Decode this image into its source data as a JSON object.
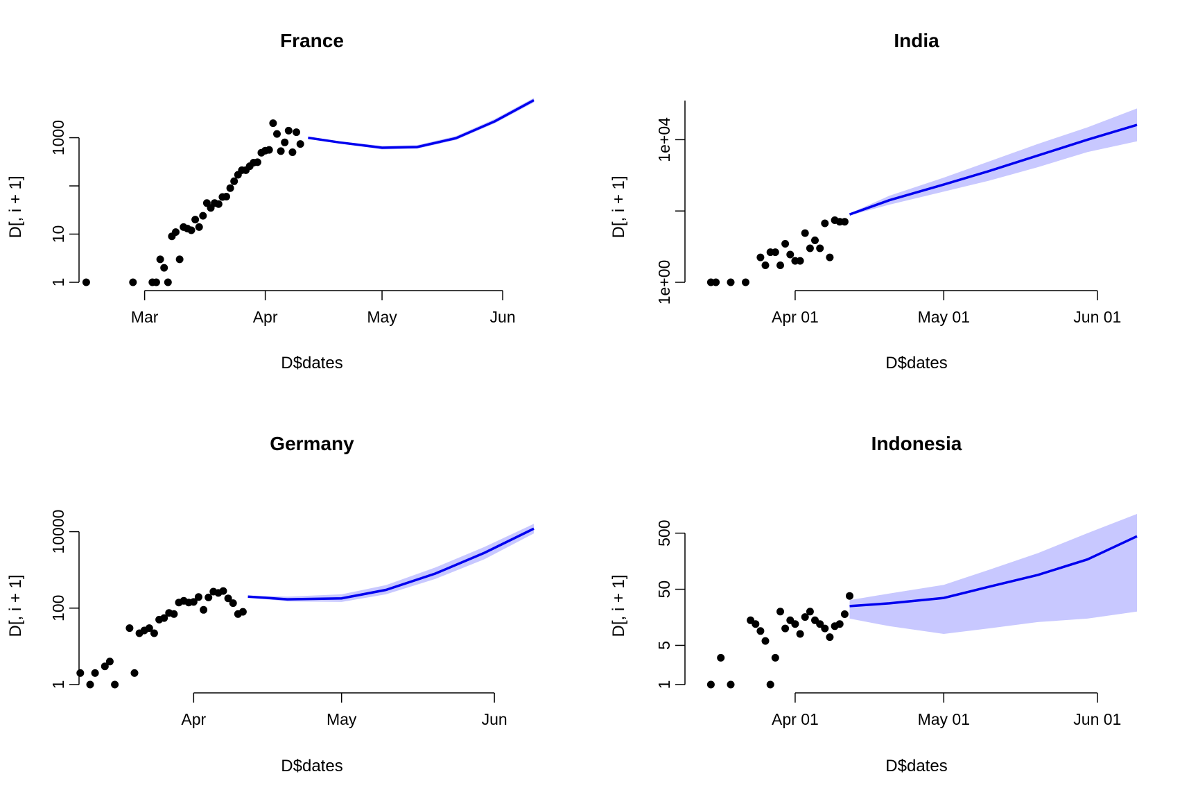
{
  "figure": {
    "layout": "2x2 grid",
    "background": "#ffffff"
  },
  "colors": {
    "points": "#000000",
    "forecast_line": "#0000ee",
    "forecast_band": "#c8c8ff",
    "axes": "#000000"
  },
  "chart_data": [
    {
      "type": "scatter",
      "title": "France",
      "xlabel": "D$dates",
      "ylabel": "D[, i + 1]",
      "y_scale": "log",
      "ylim": [
        1,
        5000
      ],
      "xlim": [
        "2020-02-16",
        "2020-06-09"
      ],
      "x_ticks": [
        {
          "date": "2020-03-01",
          "label": "Mar"
        },
        {
          "date": "2020-04-01",
          "label": "Apr"
        },
        {
          "date": "2020-05-01",
          "label": "May"
        },
        {
          "date": "2020-06-01",
          "label": "Jun"
        }
      ],
      "y_ticks": [
        {
          "value": 1,
          "label": "1"
        },
        {
          "value": 10,
          "label": "10"
        },
        {
          "value": 100,
          "label": ""
        },
        {
          "value": 1000,
          "label": "1000"
        }
      ],
      "grid": false,
      "series": [
        {
          "kind": "points",
          "x": [
            "2020-02-15",
            "2020-02-27",
            "2020-03-03",
            "2020-03-04",
            "2020-03-05",
            "2020-03-06",
            "2020-03-07",
            "2020-03-08",
            "2020-03-09",
            "2020-03-10",
            "2020-03-11",
            "2020-03-12",
            "2020-03-13",
            "2020-03-14",
            "2020-03-15",
            "2020-03-16",
            "2020-03-17",
            "2020-03-18",
            "2020-03-19",
            "2020-03-20",
            "2020-03-21",
            "2020-03-22",
            "2020-03-23",
            "2020-03-24",
            "2020-03-25",
            "2020-03-26",
            "2020-03-27",
            "2020-03-28",
            "2020-03-29",
            "2020-03-30",
            "2020-03-31",
            "2020-04-01",
            "2020-04-02",
            "2020-04-03",
            "2020-04-04",
            "2020-04-05",
            "2020-04-06",
            "2020-04-07",
            "2020-04-08",
            "2020-04-09",
            "2020-04-10"
          ],
          "y": [
            1,
            1,
            1,
            1,
            3,
            2,
            1,
            9,
            11,
            3,
            14,
            13,
            12,
            20,
            14,
            24,
            44,
            35,
            44,
            42,
            59,
            60,
            90,
            125,
            170,
            212,
            212,
            257,
            304,
            310,
            489,
            540,
            560,
            2000,
            1200,
            526,
            800,
            1400,
            500,
            1300,
            742
          ]
        },
        {
          "kind": "forecast_line",
          "x": [
            "2020-04-12",
            "2020-04-20",
            "2020-05-01",
            "2020-05-10",
            "2020-05-20",
            "2020-05-30",
            "2020-06-09"
          ],
          "y": [
            1000,
            800,
            620,
            640,
            980,
            2200,
            6000
          ]
        },
        {
          "kind": "forecast_band",
          "x": [
            "2020-04-12",
            "2020-04-20",
            "2020-05-01",
            "2020-05-10",
            "2020-05-20",
            "2020-05-30",
            "2020-06-09"
          ],
          "lower": [
            980,
            770,
            570,
            590,
            900,
            2000,
            5400
          ],
          "upper": [
            1030,
            840,
            680,
            700,
            1080,
            2450,
            6700
          ]
        }
      ]
    },
    {
      "type": "scatter",
      "title": "India",
      "xlabel": "D$dates",
      "ylabel": "D[, i + 1]",
      "y_scale": "log",
      "ylim": [
        1,
        100000
      ],
      "xlim": [
        "2020-03-12",
        "2020-06-09"
      ],
      "x_ticks": [
        {
          "date": "2020-04-01",
          "label": "Apr 01"
        },
        {
          "date": "2020-05-01",
          "label": "May 01"
        },
        {
          "date": "2020-06-01",
          "label": "Jun 01"
        }
      ],
      "y_ticks": [
        {
          "value": 1,
          "label": "1e+00"
        },
        {
          "value": 100,
          "label": ""
        },
        {
          "value": 10000,
          "label": "1e+04"
        },
        {
          "value": 1000000,
          "label": ""
        }
      ],
      "grid": false,
      "series": [
        {
          "kind": "points",
          "x": [
            "2020-03-15",
            "2020-03-16",
            "2020-03-19",
            "2020-03-22",
            "2020-03-25",
            "2020-03-26",
            "2020-03-27",
            "2020-03-28",
            "2020-03-29",
            "2020-03-30",
            "2020-03-31",
            "2020-04-01",
            "2020-04-02",
            "2020-04-03",
            "2020-04-04",
            "2020-04-05",
            "2020-04-06",
            "2020-04-07",
            "2020-04-08",
            "2020-04-09",
            "2020-04-10",
            "2020-04-11"
          ],
          "y": [
            1,
            1,
            1,
            1,
            5,
            3,
            7,
            7,
            3,
            12,
            6,
            4,
            4,
            24,
            9,
            15,
            9,
            45,
            5,
            55,
            50,
            50
          ]
        },
        {
          "kind": "forecast_line",
          "x": [
            "2020-04-12",
            "2020-04-20",
            "2020-05-01",
            "2020-05-10",
            "2020-05-20",
            "2020-05-30",
            "2020-06-09"
          ],
          "y": [
            80,
            200,
            550,
            1300,
            3600,
            10000,
            26000
          ]
        },
        {
          "kind": "forecast_band",
          "x": [
            "2020-04-12",
            "2020-04-20",
            "2020-05-01",
            "2020-05-10",
            "2020-05-20",
            "2020-05-30",
            "2020-06-09"
          ],
          "lower": [
            75,
            150,
            350,
            700,
            1700,
            4500,
            9000
          ]
        }
      ]
    },
    {
      "type": "scatter",
      "title": "Germany",
      "xlabel": "D$dates",
      "ylabel": "D[, i + 1]",
      "y_scale": "log",
      "ylim": [
        1,
        70000
      ],
      "xlim": [
        "2020-03-11",
        "2020-06-09"
      ],
      "x_ticks": [
        {
          "date": "2020-04-01",
          "label": "Apr"
        },
        {
          "date": "2020-05-01",
          "label": "May"
        },
        {
          "date": "2020-06-01",
          "label": "Jun"
        }
      ],
      "y_ticks": [
        {
          "value": 1,
          "label": "1"
        },
        {
          "value": 100,
          "label": "100"
        },
        {
          "value": 10000,
          "label": "10000"
        }
      ],
      "grid": false,
      "series": [
        {
          "kind": "points",
          "x": [
            "2020-03-09",
            "2020-03-11",
            "2020-03-12",
            "2020-03-14",
            "2020-03-15",
            "2020-03-16",
            "2020-03-19",
            "2020-03-20",
            "2020-03-21",
            "2020-03-22",
            "2020-03-23",
            "2020-03-24",
            "2020-03-25",
            "2020-03-26",
            "2020-03-27",
            "2020-03-28",
            "2020-03-29",
            "2020-03-30",
            "2020-03-31",
            "2020-04-01",
            "2020-04-02",
            "2020-04-03",
            "2020-04-04",
            "2020-04-05",
            "2020-04-06",
            "2020-04-07",
            "2020-04-08",
            "2020-04-09",
            "2020-04-10",
            "2020-04-11"
          ],
          "y": [
            2,
            1,
            2,
            3,
            4,
            1,
            30,
            2,
            22,
            26,
            30,
            22,
            50,
            55,
            75,
            70,
            140,
            155,
            140,
            145,
            195,
            90,
            190,
            270,
            250,
            280,
            180,
            135,
            70,
            80
          ]
        },
        {
          "kind": "forecast_line",
          "x": [
            "2020-04-12",
            "2020-04-20",
            "2020-05-01",
            "2020-05-10",
            "2020-05-20",
            "2020-05-30",
            "2020-06-09"
          ],
          "y": [
            200,
            170,
            180,
            300,
            800,
            2800,
            12000
          ]
        },
        {
          "kind": "forecast_band",
          "x": [
            "2020-04-12",
            "2020-04-20",
            "2020-05-01",
            "2020-05-10",
            "2020-05-20",
            "2020-05-30",
            "2020-06-09"
          ],
          "lower": [
            190,
            150,
            145,
            230,
            580,
            1900,
            9000
          ],
          "upper": [
            215,
            200,
            230,
            400,
            1150,
            4000,
            16000
          ]
        }
      ]
    },
    {
      "type": "scatter",
      "title": "Indonesia",
      "xlabel": "D$dates",
      "ylabel": "D[, i + 1]",
      "y_scale": "log",
      "ylim": [
        1,
        2000
      ],
      "xlim": [
        "2020-03-12",
        "2020-06-09"
      ],
      "x_ticks": [
        {
          "date": "2020-04-01",
          "label": "Apr 01"
        },
        {
          "date": "2020-05-01",
          "label": "May 01"
        },
        {
          "date": "2020-06-01",
          "label": "Jun 01"
        }
      ],
      "y_ticks": [
        {
          "value": 1,
          "label": "1"
        },
        {
          "value": 5,
          "label": "5"
        },
        {
          "value": 50,
          "label": "50"
        },
        {
          "value": 500,
          "label": "500"
        }
      ],
      "grid": false,
      "series": [
        {
          "kind": "points",
          "x": [
            "2020-03-15",
            "2020-03-17",
            "2020-03-19",
            "2020-03-23",
            "2020-03-24",
            "2020-03-25",
            "2020-03-26",
            "2020-03-27",
            "2020-03-28",
            "2020-03-29",
            "2020-03-30",
            "2020-03-31",
            "2020-04-01",
            "2020-04-02",
            "2020-04-03",
            "2020-04-04",
            "2020-04-05",
            "2020-04-06",
            "2020-04-07",
            "2020-04-08",
            "2020-04-09",
            "2020-04-10",
            "2020-04-11",
            "2020-04-12"
          ],
          "y": [
            1,
            3,
            1,
            14,
            12,
            9,
            6,
            1,
            3,
            20,
            10,
            14,
            12,
            8,
            16,
            20,
            14,
            12,
            10,
            7,
            11,
            12,
            18,
            38
          ]
        },
        {
          "kind": "forecast_line",
          "x": [
            "2020-04-12",
            "2020-04-20",
            "2020-05-01",
            "2020-05-10",
            "2020-05-20",
            "2020-05-30",
            "2020-06-09"
          ],
          "y": [
            25,
            28,
            35,
            55,
            90,
            170,
            440
          ]
        },
        {
          "kind": "forecast_band",
          "x": [
            "2020-04-12",
            "2020-04-20",
            "2020-05-01",
            "2020-05-10",
            "2020-05-20",
            "2020-05-30",
            "2020-06-09"
          ],
          "lower": [
            15,
            11,
            8,
            10,
            13,
            15,
            20
          ],
          "upper": [
            32,
            42,
            60,
            110,
            220,
            500,
            1100
          ]
        }
      ]
    }
  ]
}
